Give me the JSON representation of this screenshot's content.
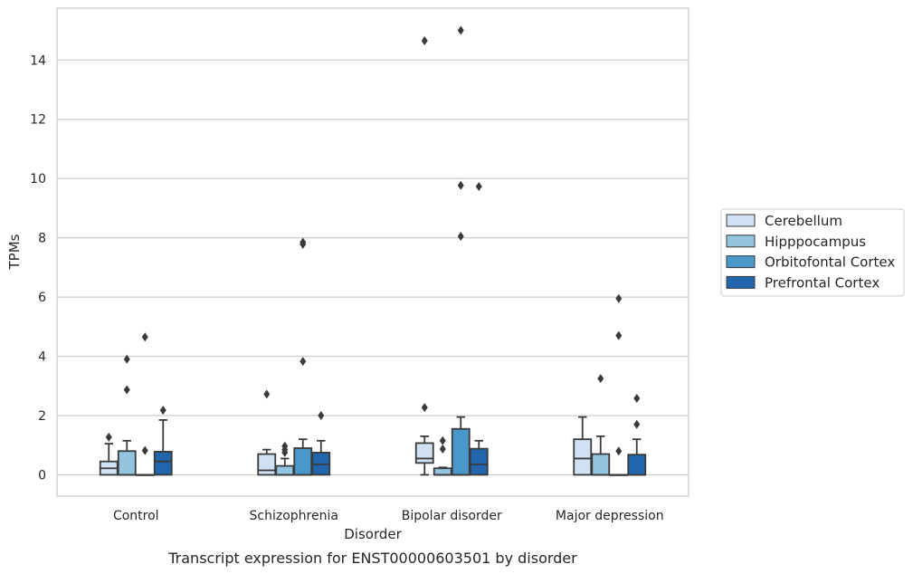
{
  "chart_data": {
    "type": "box",
    "caption": "Transcript expression for ENST00000603501 by disorder",
    "xlabel": "Disorder",
    "ylabel": "TPMs",
    "ylim": [
      -0.72,
      15.75
    ],
    "yticks": [
      0,
      2,
      4,
      6,
      8,
      10,
      12,
      14
    ],
    "grid": "horizontal",
    "legend_position": "right",
    "categories": [
      "Control",
      "Schizophrenia",
      "Bipolar disorder",
      "Major depression"
    ],
    "series": [
      {
        "name": "Cerebellum",
        "color": "#d0e1f2",
        "boxes": [
          {
            "q1": 0.0,
            "median": 0.22,
            "q3": 0.45,
            "whisker_low": 0.0,
            "whisker_high": 1.05,
            "outliers": [
              1.27
            ]
          },
          {
            "q1": 0.0,
            "median": 0.15,
            "q3": 0.7,
            "whisker_low": 0.0,
            "whisker_high": 0.85,
            "outliers": [
              2.72
            ]
          },
          {
            "q1": 0.4,
            "median": 0.55,
            "q3": 1.07,
            "whisker_low": 0.0,
            "whisker_high": 1.3,
            "outliers": [
              2.27,
              14.65
            ]
          },
          {
            "q1": 0.0,
            "median": 0.55,
            "q3": 1.2,
            "whisker_low": 0.0,
            "whisker_high": 1.95,
            "outliers": []
          }
        ]
      },
      {
        "name": "Hipppocampus",
        "color": "#94c4df",
        "boxes": [
          {
            "q1": 0.0,
            "median": 0.0,
            "q3": 0.8,
            "whisker_low": 0.0,
            "whisker_high": 1.15,
            "outliers": [
              2.87,
              3.9
            ]
          },
          {
            "q1": 0.0,
            "median": 0.0,
            "q3": 0.3,
            "whisker_low": 0.0,
            "whisker_high": 0.55,
            "outliers": [
              0.75,
              0.85,
              0.97
            ]
          },
          {
            "q1": 0.0,
            "median": 0.0,
            "q3": 0.22,
            "whisker_low": 0.0,
            "whisker_high": 0.25,
            "outliers": [
              0.87,
              1.15
            ]
          },
          {
            "q1": 0.0,
            "median": 0.0,
            "q3": 0.7,
            "whisker_low": 0.0,
            "whisker_high": 1.3,
            "outliers": [
              3.25
            ]
          }
        ]
      },
      {
        "name": "Orbitofontal Cortex",
        "color": "#4a98c9",
        "boxes": [
          {
            "q1": 0.0,
            "median": 0.0,
            "q3": 0.0,
            "whisker_low": 0.0,
            "whisker_high": 0.0,
            "outliers": [
              0.82,
              4.65
            ]
          },
          {
            "q1": 0.0,
            "median": 0.0,
            "q3": 0.9,
            "whisker_low": 0.0,
            "whisker_high": 1.2,
            "outliers": [
              3.83,
              7.78,
              7.85
            ]
          },
          {
            "q1": 0.0,
            "median": 0.0,
            "q3": 1.55,
            "whisker_low": 0.0,
            "whisker_high": 1.95,
            "outliers": [
              8.05,
              9.77,
              15.0
            ]
          },
          {
            "q1": 0.0,
            "median": 0.0,
            "q3": 0.0,
            "whisker_low": 0.0,
            "whisker_high": 0.0,
            "outliers": [
              0.8,
              4.7,
              5.95
            ]
          }
        ]
      },
      {
        "name": "Prefrontal Cortex",
        "color": "#2166ac",
        "boxes": [
          {
            "q1": 0.0,
            "median": 0.45,
            "q3": 0.78,
            "whisker_low": 0.0,
            "whisker_high": 1.85,
            "outliers": [
              2.18
            ]
          },
          {
            "q1": 0.0,
            "median": 0.35,
            "q3": 0.75,
            "whisker_low": 0.0,
            "whisker_high": 1.15,
            "outliers": [
              2.0
            ]
          },
          {
            "q1": 0.0,
            "median": 0.35,
            "q3": 0.88,
            "whisker_low": 0.0,
            "whisker_high": 1.15,
            "outliers": [
              9.73
            ]
          },
          {
            "q1": 0.0,
            "median": 0.0,
            "q3": 0.68,
            "whisker_low": 0.0,
            "whisker_high": 1.2,
            "outliers": [
              1.7,
              2.58
            ]
          }
        ]
      }
    ]
  }
}
